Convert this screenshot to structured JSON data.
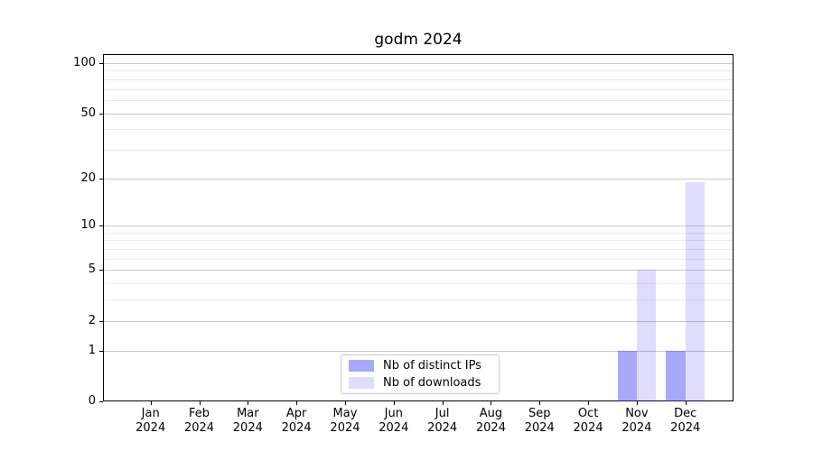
{
  "chart_data": {
    "type": "bar",
    "title": "godm 2024",
    "x": [
      "Jan",
      "Feb",
      "Mar",
      "Apr",
      "May",
      "Jun",
      "Jul",
      "Aug",
      "Sep",
      "Oct",
      "Nov",
      "Dec"
    ],
    "x_year": "2024",
    "series": [
      {
        "name": "Nb of distinct IPs",
        "color": "rgba(62,62,240,0.45)",
        "values": [
          0,
          0,
          0,
          0,
          0,
          0,
          0,
          0,
          0,
          0,
          1,
          1
        ]
      },
      {
        "name": "Nb of downloads",
        "color": "rgba(62,62,240,0.17)",
        "values": [
          0,
          0,
          0,
          0,
          0,
          0,
          0,
          0,
          0,
          0,
          5,
          19
        ]
      }
    ],
    "ylim": [
      0,
      100
    ],
    "y_scale": "log10(1+y)",
    "y_ticks": [
      0,
      1,
      2,
      5,
      10,
      20,
      50,
      100
    ],
    "y_minor_ticks": [
      3,
      4,
      6,
      7,
      8,
      9,
      30,
      40,
      60,
      70,
      80,
      90
    ],
    "grid": "horizontal major+minor",
    "legend_position": "lower center inside plot",
    "colors": {
      "major_grid": "#c9c9c9",
      "minor_grid": "#e9e9e9",
      "axis": "#000000",
      "legend_border": "#cccccc"
    }
  }
}
